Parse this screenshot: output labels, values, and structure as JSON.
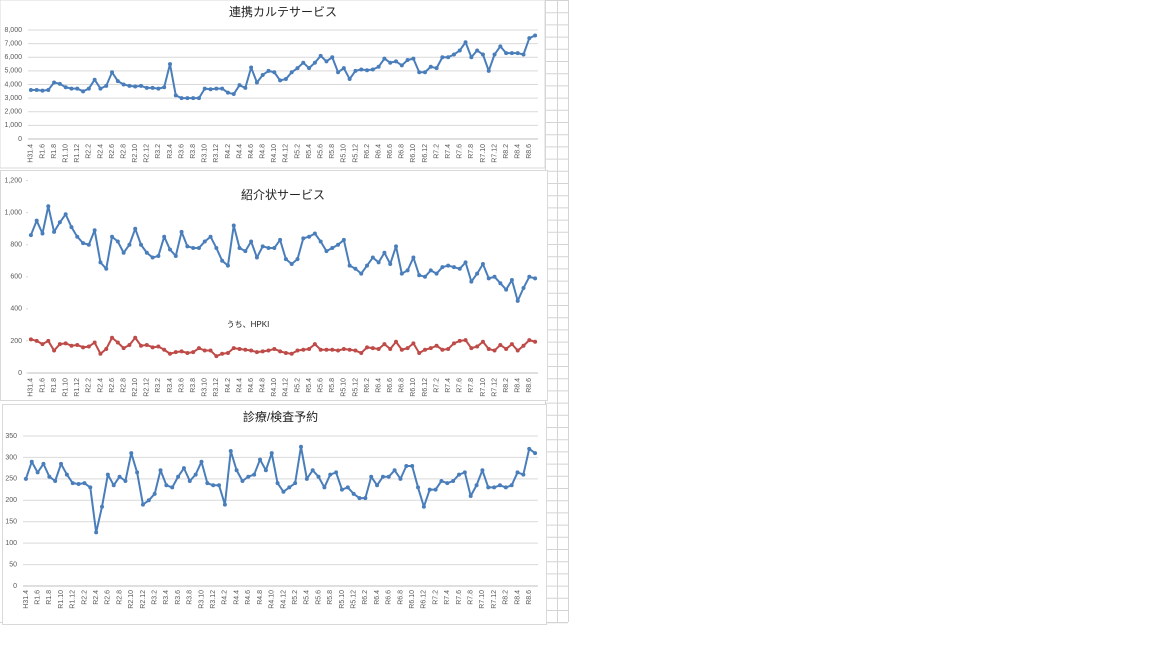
{
  "chart_data": [
    {
      "type": "line",
      "title": "連携カルテサービス",
      "grid": true,
      "categories": [
        "H31.4",
        null,
        "R1.6",
        null,
        "R1.8",
        null,
        "R1.10",
        null,
        "R1.12",
        null,
        "R2.2",
        null,
        "R2.4",
        null,
        "R2.6",
        null,
        "R2.8",
        null,
        "R2.10",
        null,
        "R2.12",
        null,
        "R3.2",
        null,
        "R3.4",
        null,
        "R3.6",
        null,
        "R3.8",
        null,
        "R3.10",
        null,
        "R3.12",
        null,
        "R4.2",
        null,
        "R4.4",
        null,
        "R4.6",
        null,
        "R4.8",
        null,
        "R4.10",
        null,
        "R4.12",
        null,
        "R5.2",
        null,
        "R5.4",
        null,
        "R5.6",
        null,
        "R5.8",
        null,
        "R5.10",
        null,
        "R5.12",
        null,
        "R6.2",
        null,
        "R6.4",
        null,
        "R6.6",
        null,
        "R6.8",
        null,
        "R6.10",
        null,
        "R6.12",
        null,
        "R7.2",
        null,
        "R7.4",
        null,
        "R7.6",
        null,
        "R7.8",
        null,
        "R7.10",
        null,
        "R7.12",
        null,
        "R8.2",
        null,
        "R8.4",
        null,
        "R8.6",
        null
      ],
      "ylim": [
        0,
        8000
      ],
      "yticks": [
        0,
        {
          "value": 1000,
          "label": "1,000"
        },
        {
          "value": 2000,
          "label": "2,000"
        },
        {
          "value": 3000,
          "label": "3,000"
        },
        {
          "value": 4000,
          "label": "4,000"
        },
        {
          "value": 5000,
          "label": "5,000"
        },
        {
          "value": 6000,
          "label": "6,000"
        },
        {
          "value": 7000,
          "label": "7,000"
        },
        {
          "value": 8000,
          "label": "8,000"
        }
      ],
      "series": [
        {
          "color": "#4a7ebb",
          "values": [
            3600,
            3600,
            3550,
            3600,
            4150,
            4050,
            3800,
            3700,
            3700,
            3500,
            3700,
            4350,
            3700,
            3900,
            4900,
            4250,
            4000,
            3900,
            3850,
            3900,
            3750,
            3750,
            3700,
            3800,
            5500,
            3200,
            3000,
            3000,
            3000,
            3000,
            3700,
            3650,
            3700,
            3700,
            3400,
            3300,
            3950,
            3750,
            5250,
            4150,
            4700,
            5000,
            4900,
            4300,
            4400,
            4900,
            5200,
            5600,
            5200,
            5600,
            6100,
            5700,
            6000,
            4900,
            5200,
            4400,
            5000,
            5100,
            5050,
            5100,
            5300,
            5900,
            5600,
            5700,
            5400,
            5800,
            5900,
            4900,
            4900,
            5300,
            5200,
            6000,
            6000,
            6200,
            6500,
            7100,
            6000,
            6500,
            6200,
            5000,
            6200,
            6800,
            6300,
            6300,
            6300,
            6200,
            7400,
            7600
          ]
        }
      ]
    },
    {
      "type": "line",
      "title": "紹介状サービス",
      "grid": false,
      "annotation": "うち、HPKI",
      "categories": [
        "H31.4",
        null,
        "R1.6",
        null,
        "R1.8",
        null,
        "R1.10",
        null,
        "R1.12",
        null,
        "R2.2",
        null,
        "R2.4",
        null,
        "R2.6",
        null,
        "R2.8",
        null,
        "R2.10",
        null,
        "R2.12",
        null,
        "R3.2",
        null,
        "R3.4",
        null,
        "R3.6",
        null,
        "R3.8",
        null,
        "R3.10",
        null,
        "R3.12",
        null,
        "R4.2",
        null,
        "R4.4",
        null,
        "R4.6",
        null,
        "R4.8",
        null,
        "R4.10",
        null,
        "R4.12",
        null,
        "R5.2",
        null,
        "R5.4",
        null,
        "R5.6",
        null,
        "R5.8",
        null,
        "R5.10",
        null,
        "R5.12",
        null,
        "R6.2",
        null,
        "R6.4",
        null,
        "R6.6",
        null,
        "R6.8",
        null,
        "R6.10",
        null,
        "R6.12",
        null,
        "R7.2",
        null,
        "R7.4",
        null,
        "R7.6",
        null,
        "R7.8",
        null,
        "R7.10",
        null,
        "R7.12",
        null,
        "R8.2",
        null,
        "R8.4",
        null,
        "R8.6",
        null
      ],
      "ylim": [
        0,
        1200
      ],
      "yticks": [
        0,
        200,
        400,
        600,
        800,
        {
          "value": 1000,
          "label": "1,000"
        },
        {
          "value": 1200,
          "label": "1,200"
        }
      ],
      "series": [
        {
          "color": "#4a7ebb",
          "values": [
            860,
            950,
            870,
            1040,
            880,
            940,
            990,
            910,
            850,
            810,
            800,
            890,
            690,
            650,
            850,
            820,
            750,
            800,
            900,
            800,
            750,
            720,
            730,
            850,
            770,
            730,
            880,
            790,
            780,
            780,
            820,
            850,
            780,
            700,
            670,
            920,
            780,
            760,
            820,
            720,
            790,
            780,
            780,
            830,
            710,
            680,
            710,
            840,
            850,
            870,
            820,
            760,
            780,
            800,
            830,
            670,
            650,
            620,
            670,
            720,
            690,
            750,
            680,
            790,
            620,
            640,
            720,
            610,
            600,
            640,
            620,
            660,
            670,
            660,
            650,
            690,
            570,
            620,
            680,
            590,
            600,
            560,
            520,
            580,
            450,
            530,
            600,
            590
          ]
        },
        {
          "color": "#be4b48",
          "values": [
            210,
            200,
            180,
            200,
            140,
            180,
            185,
            170,
            175,
            160,
            165,
            190,
            120,
            150,
            220,
            190,
            155,
            175,
            220,
            170,
            175,
            160,
            165,
            145,
            120,
            130,
            135,
            125,
            130,
            155,
            140,
            140,
            105,
            120,
            125,
            155,
            150,
            145,
            140,
            130,
            135,
            140,
            150,
            135,
            125,
            120,
            140,
            145,
            150,
            180,
            145,
            145,
            145,
            140,
            150,
            145,
            140,
            125,
            160,
            155,
            150,
            180,
            150,
            195,
            145,
            155,
            185,
            125,
            145,
            155,
            170,
            145,
            150,
            185,
            200,
            205,
            155,
            165,
            195,
            150,
            140,
            175,
            150,
            180,
            140,
            170,
            205,
            195
          ]
        }
      ]
    },
    {
      "type": "line",
      "title": "診療/検査予約",
      "grid": true,
      "categories": [
        "H31.4",
        null,
        "R1.6",
        null,
        "R1.8",
        null,
        "R1.10",
        null,
        "R1.12",
        null,
        "R2.2",
        null,
        "R2.4",
        null,
        "R2.6",
        null,
        "R2.8",
        null,
        "R2.10",
        null,
        "R2.12",
        null,
        "R3.2",
        null,
        "R3.4",
        null,
        "R3.6",
        null,
        "R3.8",
        null,
        "R3.10",
        null,
        "R3.12",
        null,
        "R4.2",
        null,
        "R4.4",
        null,
        "R4.6",
        null,
        "R4.8",
        null,
        "R4.10",
        null,
        "R4.12",
        null,
        "R5.2",
        null,
        "R5.4",
        null,
        "R5.6",
        null,
        "R5.8",
        null,
        "R5.10",
        null,
        "R5.12",
        null,
        "R6.2",
        null,
        "R6.4",
        null,
        "R6.6",
        null,
        "R6.8",
        null,
        "R6.10",
        null,
        "R6.12",
        null,
        "R7.2",
        null,
        "R7.4",
        null,
        "R7.6",
        null,
        "R7.8",
        null,
        "R7.10",
        null,
        "R7.12",
        null,
        "R8.2",
        null,
        "R8.4",
        null,
        "R8.6",
        null
      ],
      "ylim": [
        0,
        350
      ],
      "yticks": [
        0,
        50,
        100,
        150,
        200,
        250,
        300,
        350
      ],
      "series": [
        {
          "color": "#4a7ebb",
          "values": [
            250,
            290,
            265,
            285,
            255,
            245,
            285,
            260,
            240,
            238,
            240,
            230,
            125,
            185,
            260,
            235,
            255,
            245,
            310,
            265,
            190,
            200,
            215,
            270,
            235,
            230,
            255,
            275,
            245,
            260,
            290,
            240,
            235,
            235,
            190,
            315,
            270,
            245,
            255,
            260,
            295,
            270,
            310,
            240,
            220,
            230,
            240,
            325,
            250,
            270,
            255,
            230,
            260,
            265,
            225,
            230,
            215,
            205,
            205,
            255,
            235,
            255,
            255,
            270,
            250,
            280,
            280,
            230,
            185,
            225,
            225,
            245,
            240,
            245,
            260,
            265,
            210,
            235,
            270,
            230,
            230,
            235,
            230,
            235,
            265,
            260,
            320,
            310
          ]
        }
      ]
    }
  ]
}
